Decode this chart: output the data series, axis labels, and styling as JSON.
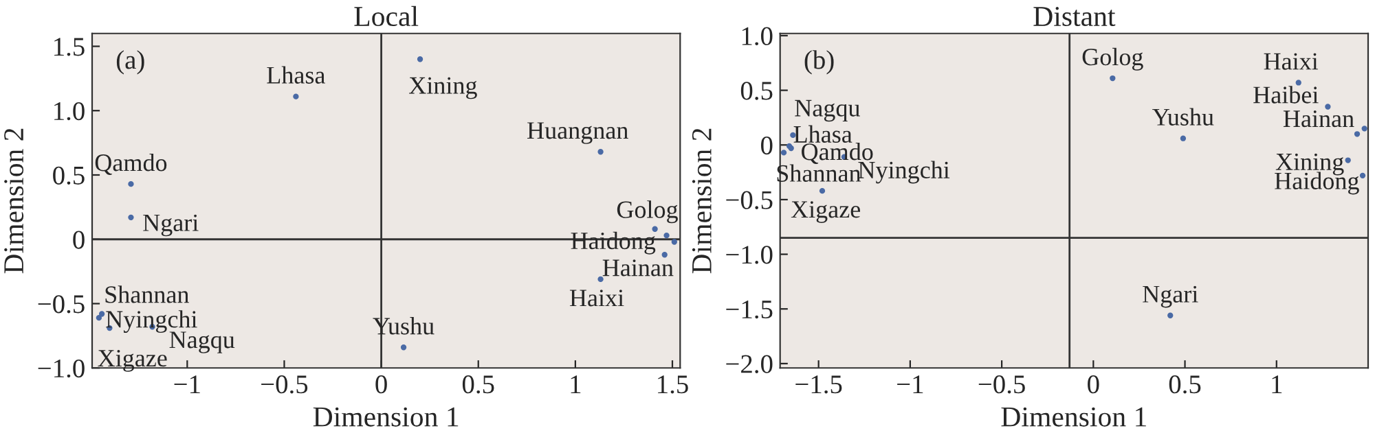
{
  "chart_data": [
    {
      "type": "scatter",
      "title": "Local",
      "xlabel": "Dimension 1",
      "ylabel": "Dimension 2",
      "marker": "circle",
      "grid": false,
      "color": "#4a6aa5",
      "x": [
        -0.44,
        0.2,
        1.13,
        -1.29,
        -1.29,
        1.41,
        1.47,
        1.51,
        1.46,
        1.13,
        0.115,
        -1.455,
        -1.44,
        -1.4,
        -1.18
      ],
      "values": [
        1.11,
        1.4,
        0.68,
        0.43,
        0.17,
        0.08,
        0.03,
        -0.02,
        -0.12,
        -0.31,
        -0.84,
        -0.61,
        -0.58,
        -0.69,
        -0.68
      ],
      "xlim": [
        -1.49,
        1.54
      ],
      "ylim": [
        -1.0,
        1.6
      ],
      "xticks": [
        {
          "value": -1,
          "label": "−1"
        },
        {
          "value": -0.5,
          "label": "−0.5"
        },
        0,
        0.5,
        1,
        1.5
      ],
      "yticks": [
        {
          "value": -1,
          "label": "−1.0"
        },
        {
          "value": -0.5,
          "label": "−0.5"
        },
        0,
        0.5,
        {
          "value": 1,
          "label": "1.0"
        },
        1.5
      ],
      "ref_lines": [
        {
          "axis": "x",
          "value": 0,
          "color": "#333333"
        },
        {
          "axis": "y",
          "value": 0,
          "color": "#333333"
        }
      ],
      "annotations": [
        "(a)",
        {
          "text": "Lhasa",
          "x": -0.44,
          "y": 1.11
        },
        {
          "text": "Xining",
          "x": 0.2,
          "y": 1.4
        },
        {
          "text": "Huangnan",
          "x": 1.13,
          "y": 0.68
        },
        {
          "text": "Qamdo",
          "x": -1.29,
          "y": 0.43
        },
        {
          "text": "Ngari",
          "x": -1.29,
          "y": 0.17
        },
        {
          "text": "Golog",
          "x": 1.41,
          "y": 0.08
        },
        {
          "text": "Haidong",
          "x": 1.47,
          "y": 0.03
        },
        {
          "text": "Hainan",
          "x": 1.46,
          "y": -0.12
        },
        {
          "text": "Haixi",
          "x": 1.13,
          "y": -0.31
        },
        {
          "text": "Yushu",
          "x": 0.115,
          "y": -0.84
        },
        {
          "text": "Shannan",
          "x": -1.455,
          "y": -0.61
        },
        {
          "text": "Nyingchi",
          "x": -1.44,
          "y": -0.58
        },
        {
          "text": "Xigaze",
          "x": -1.4,
          "y": -0.69
        },
        {
          "text": "Nagqu",
          "x": -1.18,
          "y": -0.68
        }
      ]
    },
    {
      "type": "scatter",
      "title": "Distant",
      "xlabel": "Dimension 1",
      "ylabel": "Dimension 2",
      "marker": "circle",
      "grid": false,
      "color": "#4a6aa5",
      "x": [
        0.105,
        1.12,
        1.28,
        1.48,
        1.44,
        1.39,
        1.47,
        0.49,
        0.42,
        -1.64,
        -1.66,
        -1.65,
        -1.69,
        -1.36,
        -1.48
      ],
      "values": [
        0.61,
        0.57,
        0.35,
        0.15,
        0.1,
        -0.14,
        -0.28,
        0.06,
        -1.56,
        0.09,
        -0.01,
        -0.03,
        -0.07,
        -0.11,
        -0.42
      ],
      "xlim": [
        -1.71,
        1.5
      ],
      "ylim": [
        -2.04,
        1.02
      ],
      "xticks": [
        {
          "value": -1.5,
          "label": "−1.5"
        },
        {
          "value": -1,
          "label": "−1"
        },
        {
          "value": -0.5,
          "label": "−0.5"
        },
        0,
        0.5,
        1
      ],
      "yticks": [
        {
          "value": -2,
          "label": "−2.0"
        },
        {
          "value": -1.5,
          "label": "−1.5"
        },
        {
          "value": -1,
          "label": "−1.0"
        },
        {
          "value": -0.5,
          "label": "−0.5"
        },
        0,
        0.5,
        {
          "value": 1,
          "label": "1.0"
        }
      ],
      "ref_lines": [
        {
          "axis": "x",
          "value": -0.13,
          "color": "#333333"
        },
        {
          "axis": "y",
          "value": -0.85,
          "color": "#333333"
        }
      ],
      "annotations": [
        "(b)",
        {
          "text": "Golog",
          "x": 0.105,
          "y": 0.61
        },
        {
          "text": "Haixi",
          "x": 1.12,
          "y": 0.57
        },
        {
          "text": "Haibei",
          "x": 1.28,
          "y": 0.35
        },
        {
          "text": "Hainan",
          "x": 1.48,
          "y": 0.15
        },
        {
          "text": "Xining",
          "x": 1.39,
          "y": -0.14
        },
        {
          "text": "Haidong",
          "x": 1.47,
          "y": -0.28
        },
        {
          "text": "Yushu",
          "x": 0.49,
          "y": 0.06
        },
        {
          "text": "Ngari",
          "x": 0.42,
          "y": -1.56
        },
        {
          "text": "Nagqu",
          "x": -1.64,
          "y": 0.09
        },
        {
          "text": "Lhasa",
          "x": -1.66,
          "y": -0.01
        },
        {
          "text": "Qamdo",
          "x": -1.65,
          "y": -0.03
        },
        {
          "text": "Nyingchi",
          "x": -1.36,
          "y": -0.11
        },
        {
          "text": "Shannan",
          "x": -1.48,
          "y": -0.42
        },
        {
          "text": "Xigaze",
          "x": -1.69,
          "y": -0.07
        }
      ]
    }
  ]
}
